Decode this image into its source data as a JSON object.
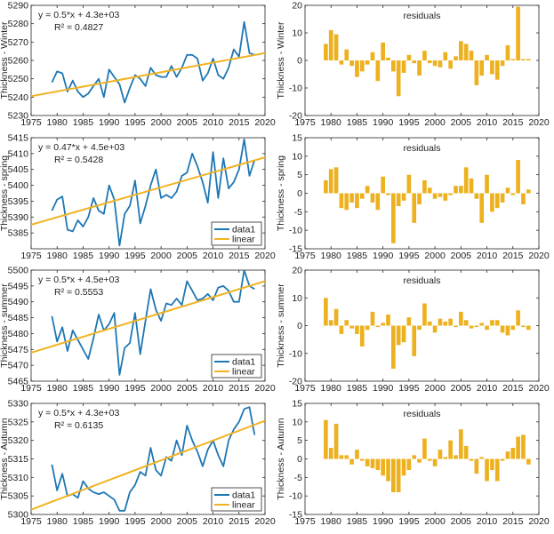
{
  "chart_data": [
    {
      "type": "line",
      "panel": "winter-fit",
      "ylabel": "Thickness - Winter",
      "xlim": [
        1975,
        2020
      ],
      "ylim": [
        5230,
        5290
      ],
      "xticks": [
        1975,
        1980,
        1985,
        1990,
        1995,
        2000,
        2005,
        2010,
        2015,
        2020
      ],
      "yticks": [
        5230,
        5240,
        5250,
        5260,
        5270,
        5280,
        5290
      ],
      "annotations": [
        "y = 0.5*x + 4.3e+03",
        "R² = 0.4827"
      ],
      "legend": null,
      "series": [
        {
          "name": "data1",
          "color": "#1f77b4",
          "x": [
            1979,
            1980,
            1981,
            1982,
            1983,
            1984,
            1985,
            1986,
            1987,
            1988,
            1989,
            1990,
            1991,
            1992,
            1993,
            1994,
            1995,
            1996,
            1997,
            1998,
            1999,
            2000,
            2001,
            2002,
            2003,
            2004,
            2005,
            2006,
            2007,
            2008,
            2009,
            2010,
            2011,
            2012,
            2013,
            2014,
            2015,
            2016,
            2017,
            2018
          ],
          "y": [
            5248,
            5254,
            5253,
            5243,
            5249,
            5243,
            5240,
            5242,
            5246,
            5250,
            5240,
            5255,
            5251,
            5247,
            5237,
            5245,
            5252,
            5250,
            5246,
            5256,
            5252,
            5251,
            5251,
            5257,
            5251,
            5256,
            5263,
            5263,
            5261,
            5249,
            5253,
            5261,
            5252,
            5250,
            5256,
            5266,
            5262,
            5281,
            5264,
            5263
          ]
        },
        {
          "name": "linear",
          "color": "#f0b323",
          "x": [
            1975,
            2020
          ],
          "y": [
            5240.5,
            5264
          ]
        }
      ]
    },
    {
      "type": "bar",
      "panel": "winter-residuals",
      "title": "residuals",
      "ylabel": "Thickness - Winter",
      "xlim": [
        1975,
        2020
      ],
      "ylim": [
        -20,
        20
      ],
      "xticks": [
        1975,
        1980,
        1985,
        1990,
        1995,
        2000,
        2005,
        2010,
        2015,
        2020
      ],
      "yticks": [
        -20,
        -10,
        0,
        10,
        20
      ],
      "color": "#edb120",
      "x": [
        1979,
        1980,
        1981,
        1982,
        1983,
        1984,
        1985,
        1986,
        1987,
        1988,
        1989,
        1990,
        1991,
        1992,
        1993,
        1994,
        1995,
        1996,
        1997,
        1998,
        1999,
        2000,
        2001,
        2002,
        2003,
        2004,
        2005,
        2006,
        2007,
        2008,
        2009,
        2010,
        2011,
        2012,
        2013,
        2014,
        2015,
        2016,
        2017,
        2018
      ],
      "values": [
        6,
        11,
        9.5,
        -1.5,
        4,
        -2,
        -6,
        -4,
        -1.5,
        3,
        -7.5,
        6.5,
        1,
        -4,
        -13,
        -4.5,
        2,
        -1,
        -5.5,
        3.5,
        -1,
        -2,
        -2.5,
        3,
        -3,
        1.5,
        7,
        6,
        3.5,
        -9,
        -5.5,
        2,
        -5,
        -7,
        -2,
        5.5,
        0.5,
        19.5,
        0.5,
        0.5
      ]
    },
    {
      "type": "line",
      "panel": "spring-fit",
      "ylabel": "Thickness - spring",
      "xlim": [
        1975,
        2020
      ],
      "ylim": [
        5380,
        5415
      ],
      "xticks": [
        1975,
        1980,
        1985,
        1990,
        1995,
        2000,
        2005,
        2010,
        2015,
        2020
      ],
      "yticks": [
        5385,
        5390,
        5395,
        5400,
        5405,
        5410,
        5415
      ],
      "annotations": [
        "y = 0.47*x + 4.5e+03",
        "R² = 0.5428"
      ],
      "legend": [
        "data1",
        "linear"
      ],
      "series": [
        {
          "name": "data1",
          "color": "#1f77b4",
          "x": [
            1979,
            1980,
            1981,
            1982,
            1983,
            1984,
            1985,
            1986,
            1987,
            1988,
            1989,
            1990,
            1991,
            1992,
            1993,
            1994,
            1995,
            1996,
            1997,
            1998,
            1999,
            2000,
            2001,
            2002,
            2003,
            2004,
            2005,
            2006,
            2007,
            2008,
            2009,
            2010,
            2011,
            2012,
            2013,
            2014,
            2015,
            2016,
            2017,
            2018
          ],
          "y": [
            5392,
            5395.5,
            5396.5,
            5386,
            5385.5,
            5389,
            5387,
            5390,
            5396,
            5392,
            5391,
            5400,
            5395.5,
            5381,
            5391,
            5393.5,
            5401.5,
            5388,
            5393.5,
            5400,
            5405,
            5396,
            5397,
            5396,
            5398,
            5403,
            5404,
            5410,
            5406,
            5401,
            5394.5,
            5410.5,
            5396,
            5408.5,
            5399,
            5401,
            5405,
            5414.5,
            5403,
            5408
          ]
        },
        {
          "name": "linear",
          "color": "#f0b323",
          "x": [
            1975,
            2020
          ],
          "y": [
            5387.6,
            5408.8
          ]
        }
      ]
    },
    {
      "type": "bar",
      "panel": "spring-residuals",
      "title": "residuals",
      "ylabel": "Thickness - spring",
      "xlim": [
        1975,
        2020
      ],
      "ylim": [
        -15,
        15
      ],
      "xticks": [
        1975,
        1980,
        1985,
        1990,
        1995,
        2000,
        2005,
        2010,
        2015,
        2020
      ],
      "yticks": [
        -15,
        -10,
        -5,
        0,
        5,
        10,
        15
      ],
      "color": "#edb120",
      "x": [
        1979,
        1980,
        1981,
        1982,
        1983,
        1984,
        1985,
        1986,
        1987,
        1988,
        1989,
        1990,
        1991,
        1992,
        1993,
        1994,
        1995,
        1996,
        1997,
        1998,
        1999,
        2000,
        2001,
        2002,
        2003,
        2004,
        2005,
        2006,
        2007,
        2008,
        2009,
        2010,
        2011,
        2012,
        2013,
        2014,
        2015,
        2016,
        2017,
        2018
      ],
      "values": [
        3.5,
        6.5,
        7,
        -4,
        -4.5,
        -2.5,
        -4,
        -1.5,
        2,
        -2.5,
        -4.5,
        4.5,
        -0.5,
        -13.5,
        -3.5,
        -2,
        5,
        -8,
        -3,
        3.5,
        1.5,
        -1.5,
        -1,
        -2,
        -0.5,
        2,
        2,
        7,
        4,
        -1.5,
        -8,
        5,
        -5,
        -4,
        -2.5,
        1.5,
        -0.5,
        9,
        -3,
        1
      ]
    },
    {
      "type": "line",
      "panel": "summer-fit",
      "ylabel": "Thickness - summer",
      "xlim": [
        1975,
        2020
      ],
      "ylim": [
        5465,
        5500
      ],
      "xticks": [
        1975,
        1980,
        1985,
        1990,
        1995,
        2000,
        2005,
        2010,
        2015,
        2020
      ],
      "yticks": [
        5465,
        5470,
        5475,
        5480,
        5485,
        5490,
        5495,
        5500
      ],
      "annotations": [
        "y = 0.5*x + 4.5e+03",
        "R² = 0.5553"
      ],
      "legend": [
        "data1",
        "linear"
      ],
      "series": [
        {
          "name": "data1",
          "color": "#1f77b4",
          "x": [
            1979,
            1980,
            1981,
            1982,
            1983,
            1984,
            1985,
            1986,
            1987,
            1988,
            1989,
            1990,
            1991,
            1992,
            1993,
            1994,
            1995,
            1996,
            1997,
            1998,
            1999,
            2000,
            2001,
            2002,
            2003,
            2004,
            2005,
            2006,
            2007,
            2008,
            2009,
            2010,
            2011,
            2012,
            2013,
            2014,
            2015,
            2016,
            2017,
            2018
          ],
          "y": [
            5485.5,
            5477.5,
            5482,
            5474.5,
            5481,
            5478,
            5475,
            5472,
            5478.5,
            5486,
            5481,
            5483,
            5486.5,
            5467,
            5475.5,
            5477,
            5486.5,
            5473.5,
            5484,
            5494,
            5487.5,
            5484,
            5489.5,
            5489,
            5491,
            5489,
            5496.5,
            5493.5,
            5490.5,
            5491,
            5492.5,
            5490.5,
            5494.5,
            5495,
            5493.5,
            5490,
            5490,
            5500,
            5495,
            5494
          ]
        },
        {
          "name": "linear",
          "color": "#f0b323",
          "x": [
            1975,
            2020
          ],
          "y": [
            5474,
            5496.5
          ]
        }
      ]
    },
    {
      "type": "bar",
      "panel": "summer-residuals",
      "title": "residuals",
      "ylabel": "Thickness - summer",
      "xlim": [
        1975,
        2020
      ],
      "ylim": [
        -20,
        20
      ],
      "xticks": [
        1975,
        1980,
        1985,
        1990,
        1995,
        2000,
        2005,
        2010,
        2015,
        2020
      ],
      "yticks": [
        -20,
        -10,
        0,
        10,
        20
      ],
      "color": "#edb120",
      "x": [
        1979,
        1980,
        1981,
        1982,
        1983,
        1984,
        1985,
        1986,
        1987,
        1988,
        1989,
        1990,
        1991,
        1992,
        1993,
        1994,
        1995,
        1996,
        1997,
        1998,
        1999,
        2000,
        2001,
        2002,
        2003,
        2004,
        2005,
        2006,
        2007,
        2008,
        2009,
        2010,
        2011,
        2012,
        2013,
        2014,
        2015,
        2016,
        2017,
        2018
      ],
      "values": [
        10,
        2,
        6,
        -3,
        2,
        -1,
        -3,
        -7.5,
        -1.5,
        5,
        -0.5,
        1,
        4,
        -15.5,
        -7,
        -6,
        3,
        -11,
        -1.5,
        8,
        1.5,
        -2.5,
        2.5,
        1.5,
        2.5,
        -0.5,
        5,
        2,
        -1,
        -0.5,
        1,
        -1.5,
        2,
        2,
        -2.5,
        -3.5,
        -1.5,
        5.5,
        -0.5,
        -1.5
      ]
    },
    {
      "type": "line",
      "panel": "autumn-fit",
      "ylabel": "Thickness - Autumn",
      "xlim": [
        1975,
        2020
      ],
      "ylim": [
        5300,
        5330
      ],
      "xticks": [
        1975,
        1980,
        1985,
        1990,
        1995,
        2000,
        2005,
        2010,
        2015,
        2020
      ],
      "yticks": [
        5300,
        5305,
        5310,
        5315,
        5320,
        5325,
        5330
      ],
      "annotations": [
        "y = 0.5*x + 4.3e+03",
        "R² = 0.6135"
      ],
      "legend": [
        "data1",
        "linear"
      ],
      "series": [
        {
          "name": "data1",
          "color": "#1f77b4",
          "x": [
            1979,
            1980,
            1981,
            1982,
            1983,
            1984,
            1985,
            1986,
            1987,
            1988,
            1989,
            1990,
            1991,
            1992,
            1993,
            1994,
            1995,
            1996,
            1997,
            1998,
            1999,
            2000,
            2001,
            2002,
            2003,
            2004,
            2005,
            2006,
            2007,
            2008,
            2009,
            2010,
            2011,
            2012,
            2013,
            2014,
            2015,
            2016,
            2017,
            2018
          ],
          "y": [
            5313.5,
            5306.5,
            5311,
            5305,
            5305.5,
            5304.5,
            5309,
            5307,
            5306,
            5305.5,
            5306,
            5305,
            5304,
            5301,
            5301,
            5306,
            5308,
            5311.5,
            5310.5,
            5318,
            5312,
            5310.5,
            5315.5,
            5314.5,
            5320,
            5316,
            5324,
            5320,
            5317,
            5313,
            5317.5,
            5320,
            5316,
            5313,
            5320,
            5323,
            5325,
            5328.5,
            5329,
            5321.5
          ]
        },
        {
          "name": "linear",
          "color": "#f0b323",
          "x": [
            1975,
            2020
          ],
          "y": [
            5301.3,
            5325.3
          ]
        }
      ]
    },
    {
      "type": "bar",
      "panel": "autumn-residuals",
      "title": "residuals",
      "ylabel": "Thickness - Autumn",
      "xlim": [
        1975,
        2020
      ],
      "ylim": [
        -15,
        15
      ],
      "xticks": [
        1975,
        1980,
        1985,
        1990,
        1995,
        2000,
        2005,
        2010,
        2015,
        2020
      ],
      "yticks": [
        -15,
        -10,
        -5,
        0,
        5,
        10,
        15
      ],
      "color": "#edb120",
      "x": [
        1979,
        1980,
        1981,
        1982,
        1983,
        1984,
        1985,
        1986,
        1987,
        1988,
        1989,
        1990,
        1991,
        1992,
        1993,
        1994,
        1995,
        1996,
        1997,
        1998,
        1999,
        2000,
        2001,
        2002,
        2003,
        2004,
        2005,
        2006,
        2007,
        2008,
        2009,
        2010,
        2011,
        2012,
        2013,
        2014,
        2015,
        2016,
        2017,
        2018
      ],
      "values": [
        10.5,
        3,
        9.5,
        1,
        1,
        -1.5,
        2.5,
        -0.5,
        -2,
        -2.5,
        -3,
        -4.5,
        -6,
        -9,
        -9,
        -4.5,
        -3,
        1,
        -1,
        5.5,
        -0.5,
        -2,
        2.5,
        0.5,
        5,
        1,
        8,
        3.5,
        -0.5,
        -4,
        0.5,
        -6,
        -3,
        -6,
        -0.5,
        2,
        3,
        6,
        6.5,
        -1.5
      ]
    }
  ]
}
